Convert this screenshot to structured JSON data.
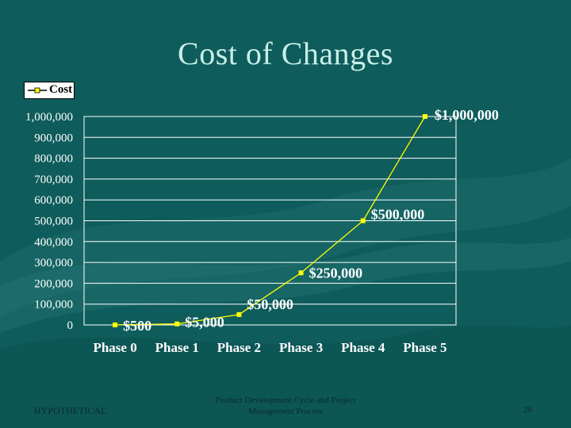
{
  "slide": {
    "title": "Cost of Changes",
    "footer_left": "HYPOTHETICAL",
    "footer_center_line1": "Product Development Cycle and Project",
    "footer_center_line2": "Management Process",
    "page_number": "26"
  },
  "colors": {
    "background": "#0f5c5c",
    "plot_background": "#0f5c5c",
    "series_line": "#ffff00",
    "grid": "#ffffff",
    "text": "#ffffff"
  },
  "chart_data": {
    "type": "line",
    "title": "",
    "xlabel": "",
    "ylabel": "",
    "categories": [
      "Phase 0",
      "Phase 1",
      "Phase 2",
      "Phase 3",
      "Phase 4",
      "Phase 5"
    ],
    "y_ticks": [
      "0",
      "100,000",
      "200,000",
      "300,000",
      "400,000",
      "500,000",
      "600,000",
      "700,000",
      "800,000",
      "900,000",
      "1,000,000"
    ],
    "ylim": [
      0,
      1000000
    ],
    "grid": true,
    "legend": {
      "position": "top-left",
      "entries": [
        "Cost"
      ]
    },
    "series": [
      {
        "name": "Cost",
        "values": [
          500,
          5000,
          50000,
          250000,
          500000,
          1000000
        ],
        "labels": [
          "$500",
          "$5,000",
          "$50,000",
          "$250,000",
          "$500,000",
          "$1,000,000"
        ]
      }
    ]
  }
}
